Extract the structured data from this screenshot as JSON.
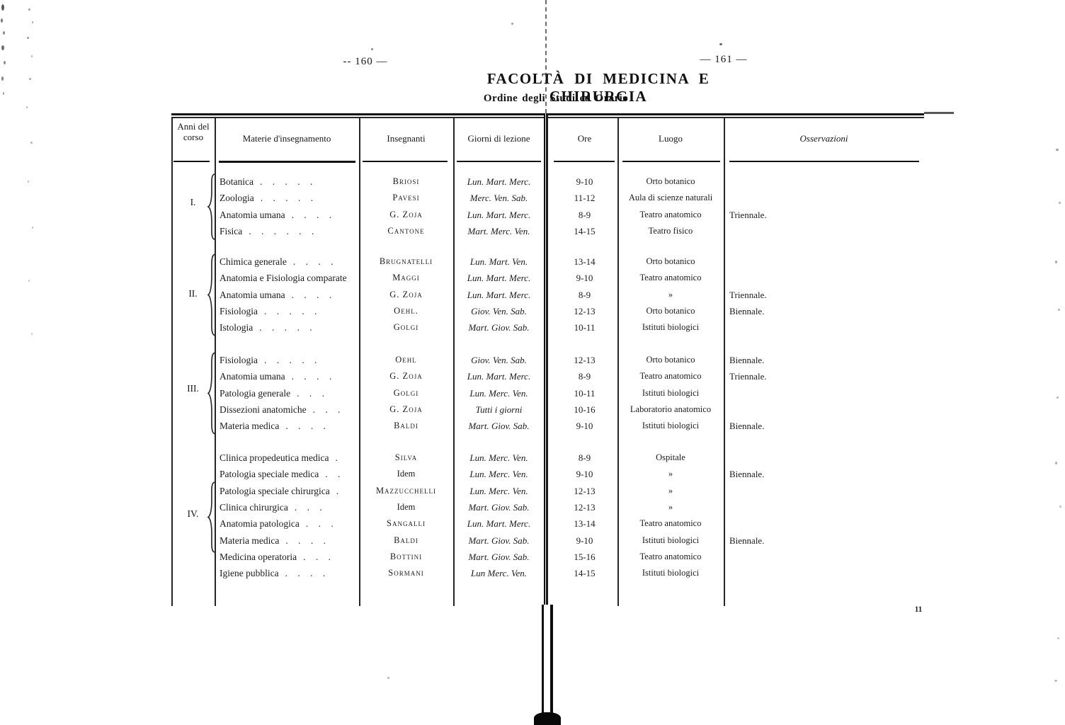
{
  "page": {
    "left_page_number": "-- 160 —",
    "right_page_number": "— 161 —",
    "printer_mark": "11"
  },
  "header": {
    "title": "FACOLTÀ DI MEDICINA E CHIRURGIA",
    "subtitle": "Ordine degli Studi ed Orario"
  },
  "table": {
    "columns": {
      "anni": "Anni del corso",
      "materie": "Materie d'insegnamento",
      "insegnanti": "Insegnanti",
      "giorni": "Giorni di lezione",
      "ore": "Ore",
      "luogo": "Luogo",
      "osservazioni": "Osservazioni"
    },
    "groups": [
      {
        "year": "I.",
        "rows": [
          {
            "materia": "Botanica",
            "dots": ". . . . .",
            "insegnante": "Briosi",
            "giorni": "Lun. Mart. Merc.",
            "ore": "9-10",
            "luogo": "Orto botanico",
            "osservazioni": ""
          },
          {
            "materia": "Zoologia",
            "dots": ". . . . .",
            "insegnante": "Pavesi",
            "giorni": "Merc. Ven. Sab.",
            "ore": "11-12",
            "luogo": "Aula di scienze naturali",
            "osservazioni": ""
          },
          {
            "materia": "Anatomia umana",
            "dots": ". . . .",
            "insegnante": "G. Zoja",
            "giorni": "Lun. Mart. Merc.",
            "ore": "8-9",
            "luogo": "Teatro anatomico",
            "osservazioni": "Triennale."
          },
          {
            "materia": "Fisica",
            "dots": ". . . . . .",
            "insegnante": "Cantone",
            "giorni": "Mart. Merc. Ven.",
            "ore": "14-15",
            "luogo": "Teatro fisico",
            "osservazioni": ""
          }
        ]
      },
      {
        "year": "II.",
        "rows": [
          {
            "materia": "Chimica generale",
            "dots": ". . . .",
            "insegnante": "Brugnatelli",
            "giorni": "Lun. Mart. Ven.",
            "ore": "13-14",
            "luogo": "Orto botanico",
            "osservazioni": ""
          },
          {
            "materia": "Anatomia e Fisiologia comparate",
            "dots": "",
            "insegnante": "Maggi",
            "giorni": "Lun. Mart. Merc.",
            "ore": "9-10",
            "luogo": "Teatro anatomico",
            "osservazioni": ""
          },
          {
            "materia": "Anatomia umana",
            "dots": ". . . .",
            "insegnante": "G. Zoja",
            "giorni": "Lun. Mart. Merc.",
            "ore": "8-9",
            "luogo": "»",
            "osservazioni": "Triennale."
          },
          {
            "materia": "Fisiologia",
            "dots": ". . . . .",
            "insegnante": "Oehl.",
            "giorni": "Giov. Ven. Sab.",
            "ore": "12-13",
            "luogo": "Orto botanico",
            "osservazioni": "Biennale."
          },
          {
            "materia": "Istologia",
            "dots": ". . . . .",
            "insegnante": "Golgi",
            "giorni": "Mart. Giov. Sab.",
            "ore": "10-11",
            "luogo": "Istituti biologici",
            "osservazioni": ""
          }
        ]
      },
      {
        "year": "III.",
        "rows": [
          {
            "materia": "Fisiologia",
            "dots": ". . . . .",
            "insegnante": "Oehl",
            "giorni": "Giov. Ven. Sab.",
            "ore": "12-13",
            "luogo": "Orto botanico",
            "osservazioni": "Biennale."
          },
          {
            "materia": "Anatomia umana",
            "dots": ". . . .",
            "insegnante": "G. Zoja",
            "giorni": "Lun. Mart. Merc.",
            "ore": "8-9",
            "luogo": "Teatro anatomico",
            "osservazioni": "Triennale."
          },
          {
            "materia": "Patologia generale",
            "dots": ". . .",
            "insegnante": "Golgi",
            "giorni": "Lun. Merc. Ven.",
            "ore": "10-11",
            "luogo": "Istituti biologici",
            "osservazioni": ""
          },
          {
            "materia": "Dissezioni anatomiche",
            "dots": ". . .",
            "insegnante": "G. Zoja",
            "giorni": "Tutti i giorni",
            "ore": "10-16",
            "luogo": "Laboratorio anatomico",
            "osservazioni": ""
          },
          {
            "materia": "Materia medica",
            "dots": ". . . .",
            "insegnante": "Baldi",
            "giorni": "Mart. Giov. Sab.",
            "ore": "9-10",
            "luogo": "Istituti biologici",
            "osservazioni": "Biennale."
          }
        ]
      },
      {
        "year": "IV.",
        "rows": [
          {
            "materia": "Clinica propedeutica medica",
            "dots": ".",
            "insegnante": "Silva",
            "giorni": "Lun. Merc. Ven.",
            "ore": "8-9",
            "luogo": "Ospitale",
            "osservazioni": ""
          },
          {
            "materia": "Patologia speciale medica",
            "dots": ". .",
            "insegnante": "Idem",
            "giorni": "Lun. Merc. Ven.",
            "ore": "9-10",
            "luogo": "»",
            "osservazioni": "Biennale."
          },
          {
            "materia": "Patologia speciale chirurgica",
            "dots": ".",
            "insegnante": "Mazzucchelli",
            "giorni": "Lun. Merc. Ven.",
            "ore": "12-13",
            "luogo": "»",
            "osservazioni": ""
          },
          {
            "materia": "Clinica chirurgica",
            "dots": ". . .",
            "insegnante": "Idem",
            "giorni": "Mart. Giov. Sab.",
            "ore": "12-13",
            "luogo": "»",
            "osservazioni": ""
          },
          {
            "materia": "Anatomia patologica",
            "dots": ". . .",
            "insegnante": "Sangalli",
            "giorni": "Lun. Mart. Merc.",
            "ore": "13-14",
            "luogo": "Teatro anatomico",
            "osservazioni": ""
          },
          {
            "materia": "Materia medica",
            "dots": ". . . .",
            "insegnante": "Baldi",
            "giorni": "Mart. Giov. Sab.",
            "ore": "9-10",
            "luogo": "Istituti biologici",
            "osservazioni": "Biennale."
          },
          {
            "materia": "Medicina operatoria",
            "dots": ". . .",
            "insegnante": "Bottini",
            "giorni": "Mart. Giov. Sab.",
            "ore": "15-16",
            "luogo": "Teatro anatomico",
            "osservazioni": ""
          },
          {
            "materia": "Igiene pubblica",
            "dots": ". . . .",
            "insegnante": "Sormani",
            "giorni": "Lun Merc. Ven.",
            "ore": "14-15",
            "luogo": "Istituti biologici",
            "osservazioni": ""
          }
        ]
      }
    ]
  }
}
